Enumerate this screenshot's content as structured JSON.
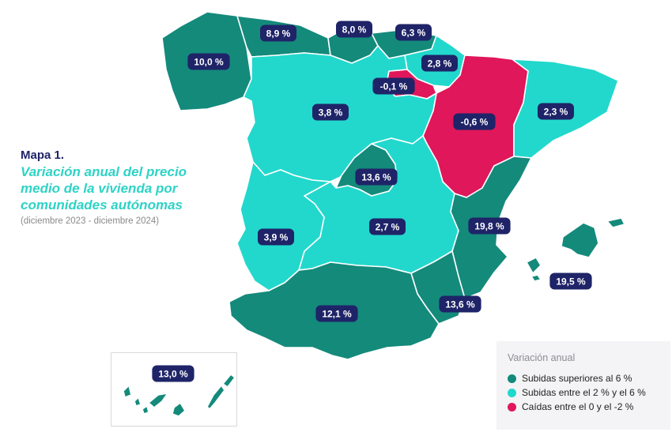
{
  "colors": {
    "high": "#148a7b",
    "mid": "#22d8cd",
    "negative": "#e0175a",
    "label_bg": "#1f2468",
    "title_accent": "#2ed3c6"
  },
  "title": {
    "map_number": "Mapa 1.",
    "heading": "Variación anual del precio medio de la vivienda por comunidades autónomas",
    "period": "(diciembre 2023 - diciembre 2024)"
  },
  "legend": {
    "title": "Variación anual",
    "items": [
      {
        "category": "high",
        "label": "Subidas superiores al 6 %"
      },
      {
        "category": "mid",
        "label": "Subidas entre el 2 %  y el 6 %"
      },
      {
        "category": "negative",
        "label": "Caídas entre el 0 y el -2 %"
      }
    ]
  },
  "regions": [
    {
      "id": "galicia",
      "category": "high",
      "value": "10,0 %"
    },
    {
      "id": "asturias",
      "category": "high",
      "value": "8,9 %"
    },
    {
      "id": "cantabria",
      "category": "high",
      "value": "8,0 %"
    },
    {
      "id": "pais-vasco",
      "category": "high",
      "value": "6,3 %"
    },
    {
      "id": "navarra",
      "category": "mid",
      "value": "2,8 %"
    },
    {
      "id": "la-rioja",
      "category": "negative",
      "value": "-0,1 %"
    },
    {
      "id": "aragon",
      "category": "negative",
      "value": "-0,6 %"
    },
    {
      "id": "cataluna",
      "category": "mid",
      "value": "2,3 %"
    },
    {
      "id": "castilla-leon",
      "category": "mid",
      "value": "3,8 %"
    },
    {
      "id": "madrid",
      "category": "high",
      "value": "13,6 %"
    },
    {
      "id": "castilla-la-mancha",
      "category": "mid",
      "value": "2,7 %"
    },
    {
      "id": "extremadura",
      "category": "mid",
      "value": "3,9 %"
    },
    {
      "id": "comunidad-valenciana",
      "category": "high",
      "value": "19,8 %"
    },
    {
      "id": "baleares",
      "category": "high",
      "value": "19,5 %"
    },
    {
      "id": "murcia",
      "category": "high",
      "value": "13,6 %"
    },
    {
      "id": "andalucia",
      "category": "high",
      "value": "12,1 %"
    },
    {
      "id": "canarias",
      "category": "high",
      "value": "13,0 %"
    }
  ]
}
